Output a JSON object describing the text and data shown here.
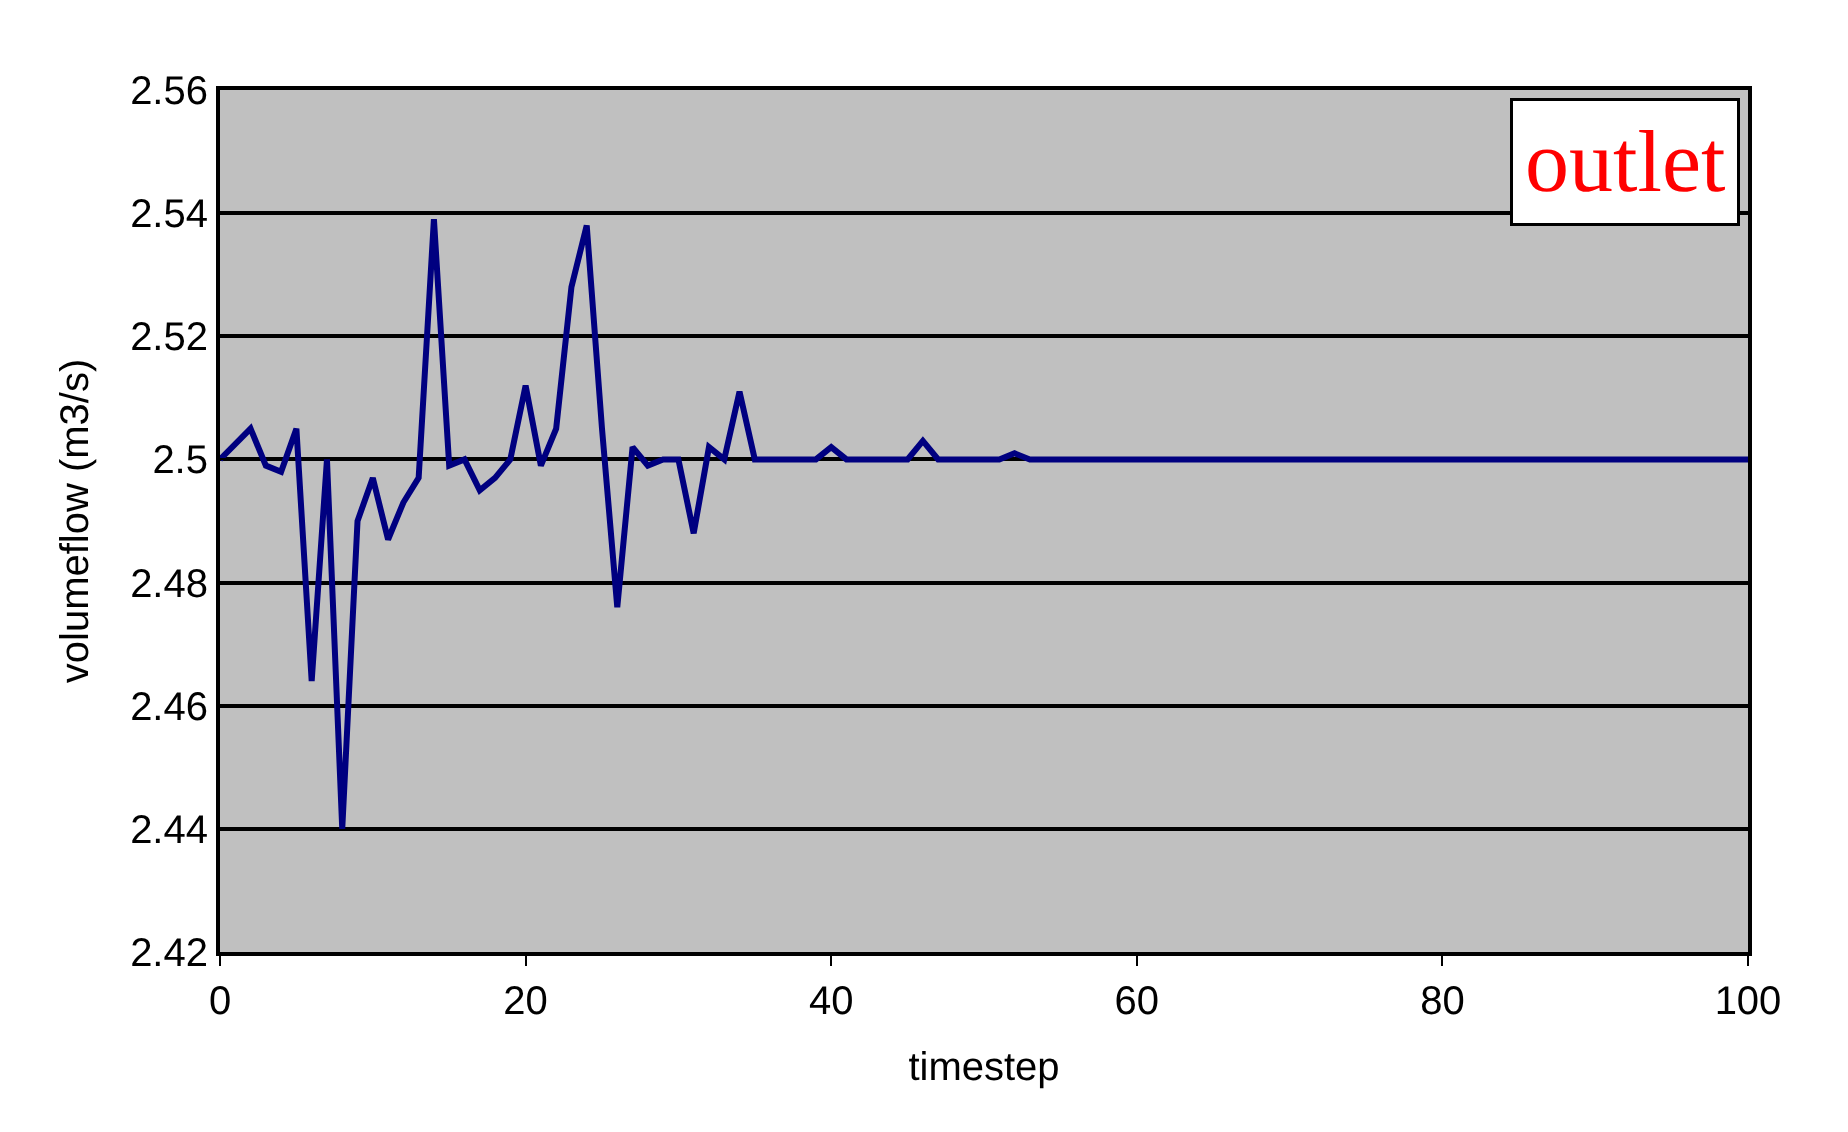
{
  "chart_data": {
    "type": "line",
    "xlabel": "timestep",
    "ylabel": "volumeflow (m3/s)",
    "annotations": [
      "outlet"
    ],
    "x": [
      0,
      2,
      3,
      4,
      5,
      6,
      7,
      8,
      9,
      10,
      11,
      12,
      13,
      14,
      15,
      16,
      17,
      18,
      19,
      20,
      21,
      22,
      23,
      24,
      25,
      26,
      27,
      28,
      29,
      30,
      31,
      32,
      33,
      34,
      35,
      39,
      40,
      41,
      45,
      46,
      47,
      51,
      52,
      53,
      100
    ],
    "series": [
      {
        "color": "#000080",
        "values": [
          2.5,
          2.505,
          2.499,
          2.498,
          2.505,
          2.464,
          2.5,
          2.44,
          2.49,
          2.497,
          2.487,
          2.493,
          2.497,
          2.539,
          2.499,
          2.5,
          2.495,
          2.497,
          2.5,
          2.512,
          2.499,
          2.505,
          2.528,
          2.538,
          2.505,
          2.476,
          2.502,
          2.499,
          2.5,
          2.5,
          2.488,
          2.502,
          2.5,
          2.511,
          2.5,
          2.5,
          2.502,
          2.5,
          2.5,
          2.503,
          2.5,
          2.5,
          2.501,
          2.5,
          2.5
        ]
      }
    ],
    "xlim": [
      0,
      100
    ],
    "xticks": [
      0,
      20,
      40,
      60,
      80,
      100
    ],
    "ylim": [
      2.42,
      2.56
    ],
    "yticks": [
      2.42,
      2.44,
      2.46,
      2.48,
      2.5,
      2.52,
      2.54,
      2.56
    ],
    "grid": "y",
    "marker": "none",
    "line_style": "solid"
  }
}
